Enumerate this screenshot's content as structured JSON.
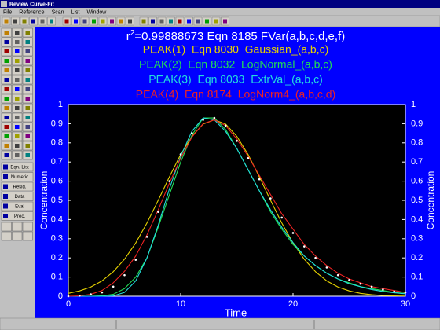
{
  "window": {
    "title": "Review Curve-Fit",
    "menu": [
      "File",
      "Reference",
      "Scan",
      "List",
      "Window"
    ],
    "buttons": [
      "Eqn. List",
      "Numeric",
      "Resid.",
      "Data",
      "Eval",
      "Prec."
    ]
  },
  "chart_data": {
    "type": "line",
    "title": {
      "prefix": "r",
      "sup": "2",
      "rest": "=0.99888673  Eqn 8185  FVar(a,b,c,d,e,f)"
    },
    "x_label": "Time",
    "y_label": "Concentration",
    "y2_label": "Concentration",
    "x": [
      0,
      1,
      2,
      3,
      4,
      5,
      6,
      7,
      8,
      9,
      10,
      11,
      12,
      13,
      14,
      15,
      16,
      17,
      18,
      19,
      20,
      21,
      22,
      23,
      24,
      25,
      26,
      27,
      28,
      29,
      30
    ],
    "xlim": [
      0,
      30
    ],
    "xticks": [
      0,
      10,
      20,
      30
    ],
    "ylim": [
      0,
      1
    ],
    "yticks": [
      0,
      0.1,
      0.2,
      0.3,
      0.4,
      0.5,
      0.6,
      0.7,
      0.8,
      0.9,
      1
    ],
    "y2lim": [
      0,
      1
    ],
    "y2ticks": [
      0,
      0.1,
      0.2,
      0.3,
      0.4,
      0.5,
      0.6,
      0.7,
      0.8,
      0.9,
      1
    ],
    "series": [
      {
        "name": "PEAK(1)  Eqn 8030  Gaussian_(a,b,c)",
        "color": "#e6d200",
        "style": "line",
        "values": [
          0.015,
          0.028,
          0.048,
          0.08,
          0.128,
          0.193,
          0.278,
          0.382,
          0.5,
          0.623,
          0.739,
          0.834,
          0.898,
          0.92,
          0.898,
          0.834,
          0.739,
          0.623,
          0.5,
          0.382,
          0.278,
          0.193,
          0.128,
          0.08,
          0.048,
          0.028,
          0.015,
          0.008,
          0.004,
          0.002,
          0.001
        ]
      },
      {
        "name": "PEAK(2)  Eqn 8032  LogNormal_(a,b,c)",
        "color": "#22dd55",
        "style": "line",
        "values": [
          0,
          0,
          0,
          0.002,
          0.01,
          0.04,
          0.1,
          0.2,
          0.36,
          0.53,
          0.7,
          0.84,
          0.93,
          0.93,
          0.87,
          0.77,
          0.66,
          0.55,
          0.44,
          0.35,
          0.27,
          0.21,
          0.16,
          0.12,
          0.09,
          0.07,
          0.05,
          0.04,
          0.03,
          0.02,
          0.015
        ]
      },
      {
        "name": "PEAK(3)  Eqn 8033  ExtrVal_(a,b,c)",
        "color": "#22dddd",
        "style": "line",
        "values": [
          0,
          0,
          0,
          0,
          0.002,
          0.02,
          0.08,
          0.2,
          0.37,
          0.56,
          0.73,
          0.86,
          0.93,
          0.92,
          0.86,
          0.77,
          0.66,
          0.55,
          0.45,
          0.36,
          0.28,
          0.21,
          0.16,
          0.12,
          0.09,
          0.065,
          0.05,
          0.035,
          0.025,
          0.018,
          0.013
        ]
      },
      {
        "name": "PEAK(4)  Eqn 8174  LogNorm4_(a,b,c,d)",
        "color": "#ee2222",
        "style": "line",
        "values": [
          0,
          0.002,
          0.01,
          0.03,
          0.07,
          0.13,
          0.21,
          0.32,
          0.45,
          0.59,
          0.72,
          0.83,
          0.9,
          0.92,
          0.89,
          0.82,
          0.73,
          0.63,
          0.53,
          0.43,
          0.35,
          0.27,
          0.21,
          0.16,
          0.12,
          0.09,
          0.07,
          0.05,
          0.04,
          0.03,
          0.02
        ]
      },
      {
        "color": "#ffffff",
        "style": "points",
        "values": [
          0,
          0.003,
          0.01,
          0.02,
          0.05,
          0.11,
          0.19,
          0.31,
          0.44,
          0.6,
          0.74,
          0.85,
          0.92,
          0.93,
          0.89,
          0.81,
          0.72,
          0.61,
          0.51,
          0.41,
          0.33,
          0.26,
          0.2,
          0.15,
          0.11,
          0.085,
          0.065,
          0.05,
          0.035,
          0.025,
          0.02
        ]
      }
    ]
  }
}
